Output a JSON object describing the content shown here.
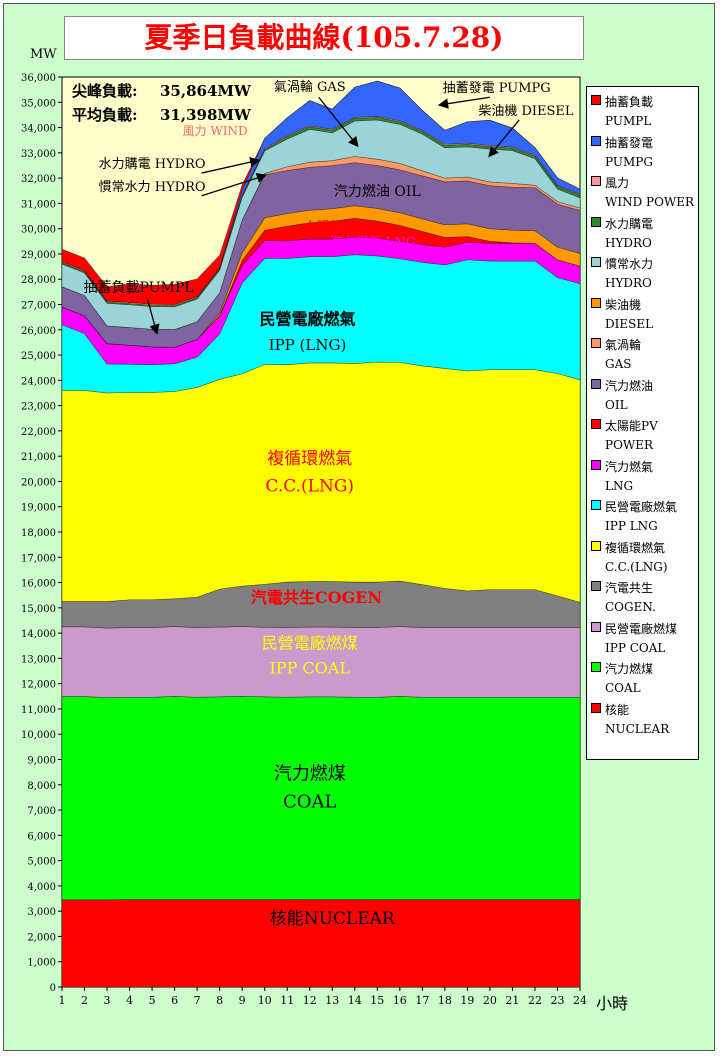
{
  "chart_data": {
    "type": "area",
    "title": "夏季日負載曲線(105.7.28)",
    "ylabel": "MW",
    "xlabel": "小時",
    "ylim": [
      0,
      36000
    ],
    "ytick_step": 1000,
    "x": [
      1,
      2,
      3,
      4,
      5,
      6,
      7,
      8,
      9,
      10,
      11,
      12,
      13,
      14,
      15,
      16,
      17,
      18,
      19,
      20,
      21,
      22,
      23,
      24
    ],
    "peak_label": "尖峰負載:",
    "peak_value": "35,864MW",
    "avg_label": "平均負載:",
    "avg_value": "31,398MW",
    "series": [
      {
        "key": "nuclear",
        "color": "#ff0000",
        "values": [
          3450,
          3450,
          3450,
          3460,
          3460,
          3460,
          3460,
          3460,
          3460,
          3460,
          3460,
          3460,
          3460,
          3460,
          3460,
          3460,
          3460,
          3460,
          3460,
          3460,
          3460,
          3460,
          3460,
          3460
        ]
      },
      {
        "key": "coal",
        "color": "#00ff00",
        "values": [
          8040,
          8040,
          8000,
          8000,
          8000,
          8040,
          8000,
          8020,
          8040,
          8020,
          8000,
          8020,
          8020,
          8000,
          8000,
          8040,
          8000,
          8000,
          8000,
          8000,
          8000,
          8000,
          8000,
          8000
        ]
      },
      {
        "key": "ipp_coal",
        "color": "#cc99cc",
        "values": [
          2760,
          2760,
          2750,
          2760,
          2760,
          2760,
          2760,
          2760,
          2760,
          2750,
          2760,
          2760,
          2760,
          2760,
          2760,
          2760,
          2760,
          2760,
          2760,
          2760,
          2760,
          2760,
          2760,
          2760
        ]
      },
      {
        "key": "cogen",
        "color": "#808080",
        "values": [
          1000,
          1000,
          1050,
          1100,
          1100,
          1100,
          1200,
          1500,
          1600,
          1700,
          1800,
          1800,
          1800,
          1800,
          1800,
          1800,
          1700,
          1550,
          1450,
          1500,
          1500,
          1500,
          1250,
          1000
        ]
      },
      {
        "key": "cc_lng",
        "color": "#ffff00",
        "values": [
          8350,
          8350,
          8250,
          8200,
          8200,
          8200,
          8300,
          8300,
          8400,
          8700,
          8600,
          8650,
          8650,
          8650,
          8700,
          8650,
          8650,
          8700,
          8700,
          8700,
          8700,
          8700,
          8800,
          8800
        ]
      },
      {
        "key": "ipp_lng",
        "color": "#00ffff",
        "values": [
          2600,
          2250,
          1150,
          1120,
          1100,
          1100,
          1200,
          1800,
          3600,
          4200,
          4200,
          4200,
          4200,
          4300,
          4200,
          4100,
          4100,
          4100,
          4400,
          4300,
          4300,
          4300,
          3800,
          3800
        ]
      },
      {
        "key": "steam_lng",
        "color": "#ff00ff",
        "values": [
          700,
          700,
          800,
          750,
          700,
          650,
          700,
          700,
          700,
          700,
          700,
          700,
          700,
          700,
          700,
          700,
          700,
          700,
          700,
          700,
          700,
          700,
          700,
          700
        ]
      },
      {
        "key": "solar",
        "color": "#ff0000",
        "values": [
          0,
          0,
          0,
          0,
          0,
          0,
          0,
          20,
          180,
          400,
          580,
          640,
          700,
          740,
          680,
          620,
          520,
          380,
          220,
          80,
          20,
          0,
          0,
          0
        ]
      },
      {
        "key": "diesel",
        "color": "#ff9900",
        "values": [
          0,
          0,
          0,
          0,
          0,
          0,
          0,
          100,
          300,
          500,
          500,
          500,
          500,
          500,
          500,
          500,
          500,
          500,
          500,
          500,
          500,
          500,
          500,
          500
        ]
      },
      {
        "key": "oil",
        "color": "#8064a2",
        "values": [
          800,
          800,
          700,
          700,
          700,
          700,
          700,
          800,
          1300,
          1700,
          1700,
          1700,
          1700,
          1700,
          1700,
          1700,
          1700,
          1700,
          1700,
          1700,
          1700,
          1700,
          1700,
          1700
        ]
      },
      {
        "key": "gas",
        "color": "#ff9966",
        "values": [
          0,
          0,
          0,
          0,
          0,
          0,
          0,
          0,
          0,
          50,
          150,
          200,
          200,
          250,
          250,
          250,
          200,
          150,
          150,
          150,
          150,
          100,
          100,
          100
        ]
      },
      {
        "key": "hydro_con",
        "color": "#9bd4d8",
        "values": [
          900,
          900,
          900,
          900,
          900,
          900,
          900,
          900,
          900,
          900,
          1100,
          1300,
          1100,
          1400,
          1550,
          1550,
          1450,
          1200,
          1200,
          1300,
          1300,
          1050,
          500,
          400
        ]
      },
      {
        "key": "hydro_pur",
        "color": "#2e8b2e",
        "values": [
          50,
          50,
          50,
          50,
          50,
          50,
          50,
          50,
          50,
          50,
          100,
          100,
          100,
          100,
          100,
          100,
          100,
          100,
          100,
          100,
          100,
          100,
          100,
          100
        ]
      },
      {
        "key": "wind",
        "color": "#ff9999",
        "values": [
          40,
          40,
          40,
          40,
          40,
          40,
          40,
          40,
          40,
          40,
          40,
          40,
          40,
          40,
          40,
          40,
          40,
          40,
          40,
          40,
          40,
          40,
          40,
          40
        ]
      },
      {
        "key": "pumpg",
        "color": "#3366ff",
        "values": [
          0,
          0,
          0,
          0,
          0,
          0,
          0,
          0,
          200,
          400,
          700,
          1000,
          800,
          1200,
          1400,
          1300,
          800,
          550,
          850,
          1000,
          750,
          300,
          300,
          200
        ]
      },
      {
        "key": "pumpl",
        "color": "#ff0000",
        "values": [
          500,
          500,
          560,
          740,
          750,
          800,
          700,
          500,
          200,
          0,
          0,
          0,
          0,
          0,
          0,
          0,
          0,
          0,
          0,
          0,
          0,
          0,
          0,
          0
        ]
      }
    ],
    "legend": [
      {
        "color": "#ff0000",
        "line1": "抽蓄負載",
        "line2": "PUMPL"
      },
      {
        "color": "#3366ff",
        "line1": "抽蓄發電",
        "line2": "PUMPG"
      },
      {
        "color": "#ff9999",
        "line1": "風力",
        "line2": "WIND POWER"
      },
      {
        "color": "#2e8b2e",
        "line1": "水力購電",
        "line2": "HYDRO"
      },
      {
        "color": "#9bd4d8",
        "line1": "慣常水力",
        "line2": "HYDRO"
      },
      {
        "color": "#ff9900",
        "line1": "柴油機",
        "line2": "DIESEL"
      },
      {
        "color": "#ff9966",
        "line1": "氣渦輪",
        "line2": "GAS"
      },
      {
        "color": "#8064a2",
        "line1": "汽力燃油",
        "line2": "OIL"
      },
      {
        "color": "#ff0000",
        "line1": "太陽能PV",
        "line2": "POWER"
      },
      {
        "color": "#ff00ff",
        "line1": "汽力燃氣",
        "line2": "LNG"
      },
      {
        "color": "#00ffff",
        "line1": "民營電廠燃氣",
        "line2": "IPP LNG"
      },
      {
        "color": "#ffff00",
        "line1": "複循環燃氣",
        "line2": "C.C.(LNG)"
      },
      {
        "color": "#808080",
        "line1": "汽電共生",
        "line2": "COGEN."
      },
      {
        "color": "#cc99cc",
        "line1": "民營電廠燃煤",
        "line2": "IPP COAL"
      },
      {
        "color": "#00ff00",
        "line1": "汽力燃煤",
        "line2": "COAL"
      },
      {
        "color": "#ff0000",
        "line1": "核能",
        "line2": "NUCLEAR"
      }
    ],
    "annotations": [
      {
        "text": "核能NUCLEAR",
        "x": 13,
        "y": 2500,
        "color": "#000000",
        "size": 17
      },
      {
        "text": "汽力燃煤",
        "x": 12,
        "y": 8200,
        "color": "#000000",
        "size": 18
      },
      {
        "text": "COAL",
        "x": 12,
        "y": 7100,
        "color": "#000000",
        "size": 18
      },
      {
        "text": "民營電廠燃煤",
        "x": 12,
        "y": 13400,
        "color": "#ffff00",
        "size": 16
      },
      {
        "text": "IPP COAL",
        "x": 12,
        "y": 12400,
        "color": "#ffff00",
        "size": 16
      },
      {
        "text": "汽電共生COGEN",
        "x": 12.3,
        "y": 15200,
        "color": "#ff0000",
        "size": 16,
        "bold": true
      },
      {
        "text": "複循環燃氣",
        "x": 12,
        "y": 20700,
        "color": "#ff0000",
        "size": 17
      },
      {
        "text": "C.C.(LNG)",
        "x": 12,
        "y": 19600,
        "color": "#ff0000",
        "size": 17
      },
      {
        "text": "民營電廠燃氣",
        "x": 11.9,
        "y": 26200,
        "color": "#000000",
        "size": 16,
        "bold": true
      },
      {
        "text": "IPP (LNG)",
        "x": 11.9,
        "y": 25200,
        "color": "#000000",
        "size": 15
      },
      {
        "text": "汽力燃氣 LNG",
        "x": 14.8,
        "y": 29300,
        "color": "#ff00ff",
        "size": 13
      },
      {
        "text": "太陽能PV",
        "x": 13,
        "y": 29900,
        "color": "#ff0000",
        "size": 13
      },
      {
        "text": "汽力燃油 OIL",
        "x": 15,
        "y": 31300,
        "color": "#000000",
        "size": 14
      },
      {
        "text": "抽蓄負載PUMPL",
        "x": 4.4,
        "y": 27500,
        "color": "#000000",
        "size": 14
      },
      {
        "text": "水力購電 HYDRO",
        "x": 5,
        "y": 32400,
        "color": "#000000",
        "size": 13
      },
      {
        "text": "慣常水力 HYDRO",
        "x": 5,
        "y": 31500,
        "color": "#000000",
        "size": 13
      },
      {
        "text": "風力 WIND",
        "x": 7.8,
        "y": 33700,
        "color": "#ff6666",
        "size": 12
      },
      {
        "text": "氣渦輪 GAS",
        "x": 12,
        "y": 35450,
        "color": "#000000",
        "size": 13
      },
      {
        "text": "抽蓄發電 PUMPG",
        "x": 20.3,
        "y": 35400,
        "color": "#000000",
        "size": 13
      },
      {
        "text": "柴油機 DIESEL",
        "x": 21.6,
        "y": 34500,
        "color": "#000000",
        "size": 13
      }
    ]
  }
}
